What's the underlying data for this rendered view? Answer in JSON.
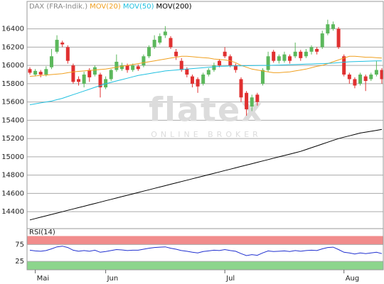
{
  "chart_data": [
    {
      "type": "candlestick",
      "name": "DAX (FRA-Indik.)",
      "name_color": "#888888",
      "up_color": "#5cb85c",
      "down_color": "#e03030",
      "categories": [
        null,
        "Mai",
        null,
        null,
        null,
        null,
        null,
        null,
        null,
        null,
        null,
        null,
        null,
        null,
        "Jun",
        null,
        null,
        null,
        null,
        null,
        null,
        null,
        null,
        null,
        null,
        null,
        null,
        null,
        null,
        null,
        null,
        null,
        null,
        null,
        null,
        null,
        "Jul",
        null,
        null,
        null,
        null,
        null,
        null,
        null,
        null,
        null,
        null,
        null,
        null,
        null,
        null,
        null,
        null,
        null,
        null,
        null,
        null,
        null,
        "Aug",
        null,
        null,
        null,
        null,
        null,
        null,
        null
      ],
      "open": [
        15960,
        15900,
        15930,
        15900,
        15980,
        16150,
        16250,
        16200,
        16000,
        15850,
        15800,
        15950,
        15900,
        15900,
        15760,
        15850,
        15950,
        15960,
        16000,
        15950,
        15990,
        16000,
        16100,
        16200,
        16250,
        16330,
        16300,
        16150,
        16050,
        15960,
        15880,
        15850,
        15800,
        15900,
        15950,
        16050,
        16150,
        16100,
        16000,
        15850,
        15700,
        15550,
        15680,
        15800,
        15950,
        16150,
        16050,
        16050,
        16100,
        16100,
        16150,
        16100,
        16150,
        16180,
        16200,
        16350,
        16400,
        16400,
        16100,
        15900,
        15850,
        15800,
        15880,
        15850,
        15900,
        15950
      ],
      "high": [
        15980,
        15960,
        15950,
        15990,
        16180,
        16330,
        16270,
        16220,
        16020,
        15880,
        15930,
        15970,
        16000,
        15920,
        15880,
        15960,
        16120,
        16030,
        16020,
        16020,
        16010,
        16120,
        16220,
        16330,
        16350,
        16430,
        16320,
        16180,
        16080,
        15980,
        15900,
        15870,
        15920,
        15970,
        16030,
        16070,
        16200,
        16120,
        16020,
        15870,
        15720,
        15680,
        15700,
        15970,
        16150,
        16170,
        16120,
        16150,
        16120,
        16250,
        16170,
        16180,
        16220,
        16200,
        16380,
        16500,
        16480,
        16420,
        16120,
        15920,
        15870,
        15920,
        15900,
        15920,
        16050,
        15970
      ],
      "low": [
        15900,
        15880,
        15870,
        15880,
        15960,
        16130,
        16200,
        16020,
        15800,
        15780,
        15760,
        15820,
        15880,
        15650,
        15740,
        15830,
        15930,
        15940,
        15920,
        15930,
        15940,
        15980,
        16080,
        16180,
        16230,
        16300,
        16180,
        16060,
        15930,
        15870,
        15760,
        15700,
        15780,
        15880,
        15930,
        15980,
        16080,
        15980,
        15920,
        15600,
        15450,
        15500,
        15560,
        15780,
        15930,
        16030,
        16020,
        16030,
        16020,
        16080,
        16050,
        16080,
        16120,
        16120,
        16180,
        16330,
        16380,
        16180,
        15880,
        15800,
        15750,
        15780,
        15720,
        15830,
        15880,
        15800
      ],
      "close": [
        15920,
        15940,
        15900,
        15960,
        16100,
        16280,
        16230,
        16050,
        15820,
        15820,
        15900,
        15870,
        15980,
        15760,
        15850,
        15950,
        16040,
        16000,
        15950,
        16000,
        15960,
        16100,
        16200,
        16280,
        16320,
        16370,
        16200,
        16100,
        15950,
        15900,
        15800,
        15770,
        15900,
        15950,
        16000,
        16000,
        16100,
        16000,
        15950,
        15650,
        15520,
        15650,
        15600,
        15950,
        16100,
        16050,
        16100,
        16120,
        16050,
        16150,
        16080,
        16150,
        16200,
        16150,
        16350,
        16450,
        16450,
        16200,
        15900,
        15850,
        15780,
        15900,
        15830,
        15900,
        15950,
        15850
      ],
      "series": [
        {
          "name": "MOV(20)",
          "color": "#f0a020",
          "values": [
            15880,
            15885,
            15890,
            15895,
            15900,
            15905,
            15910,
            15920,
            15930,
            15935,
            15940,
            15945,
            15950,
            15955,
            15960,
            15970,
            15980,
            15990,
            16000,
            16010,
            16020,
            16030,
            16040,
            16050,
            16060,
            16070,
            16080,
            16090,
            16100,
            16100,
            16095,
            16090,
            16085,
            16080,
            16070,
            16065,
            16060,
            16050,
            16030,
            16000,
            15980,
            15960,
            15950,
            15940,
            15930,
            15920,
            15920,
            15925,
            15930,
            15940,
            15950,
            15960,
            15975,
            15990,
            16000,
            16020,
            16040,
            16060,
            16080,
            16100,
            16100,
            16095,
            16090,
            16090,
            16085,
            16080
          ]
        },
        {
          "name": "MOV(50)",
          "color": "#20c0e0",
          "values": [
            15570,
            15580,
            15590,
            15600,
            15610,
            15625,
            15640,
            15660,
            15680,
            15700,
            15720,
            15740,
            15760,
            15780,
            15800,
            15815,
            15830,
            15845,
            15860,
            15875,
            15890,
            15900,
            15910,
            15920,
            15930,
            15940,
            15945,
            15950,
            15955,
            15960,
            15965,
            15970,
            15975,
            15980,
            15985,
            15990,
            15992,
            15994,
            15995,
            15996,
            15997,
            15998,
            15999,
            16000,
            16000,
            16002,
            16004,
            16006,
            16008,
            16010,
            16012,
            16014,
            16016,
            16018,
            16020,
            16022,
            16025,
            16030,
            16035,
            16040,
            16042,
            16044,
            16046,
            16048,
            16049,
            16050
          ]
        },
        {
          "name": "MOV(200)",
          "color": "#000000",
          "values": [
            14310,
            14325,
            14340,
            14355,
            14370,
            14385,
            14400,
            14415,
            14430,
            14445,
            14460,
            14475,
            14490,
            14505,
            14520,
            14535,
            14550,
            14565,
            14580,
            14595,
            14610,
            14625,
            14640,
            14655,
            14670,
            14685,
            14700,
            14715,
            14730,
            14745,
            14760,
            14775,
            14790,
            14805,
            14820,
            14835,
            14850,
            14865,
            14880,
            14895,
            14910,
            14925,
            14940,
            14955,
            14970,
            14985,
            15000,
            15015,
            15030,
            15045,
            15060,
            15080,
            15100,
            15120,
            15140,
            15160,
            15180,
            15200,
            15215,
            15230,
            15245,
            15260,
            15270,
            15280,
            15290,
            15300
          ]
        }
      ],
      "ylim": [
        14215,
        16700
      ],
      "yticks": [
        14400,
        14600,
        14800,
        15000,
        15200,
        15400,
        15600,
        15800,
        16000,
        16200,
        16400
      ],
      "grid": true,
      "watermark": {
        "title": "flatex",
        "subtitle": "ONLINE BROKER"
      }
    },
    {
      "type": "line",
      "series": [
        {
          "name": "RSI(14)",
          "color": "#2030d0",
          "values": [
            58,
            56,
            55,
            57,
            62,
            68,
            70,
            66,
            58,
            55,
            57,
            55,
            58,
            52,
            54,
            57,
            60,
            59,
            57,
            58,
            58,
            61,
            64,
            66,
            67,
            68,
            64,
            61,
            57,
            55,
            52,
            50,
            54,
            56,
            58,
            57,
            60,
            57,
            55,
            48,
            42,
            45,
            43,
            50,
            56,
            54,
            55,
            56,
            54,
            57,
            55,
            57,
            58,
            57,
            62,
            66,
            67,
            60,
            52,
            50,
            47,
            50,
            48,
            50,
            52,
            48
          ]
        }
      ],
      "ylim": [
        0,
        122
      ],
      "yticks": [
        25,
        75
      ],
      "zones": [
        {
          "from": 75,
          "to": 100,
          "color": "#f08080"
        },
        {
          "from": 0,
          "to": 25,
          "color": "#7fd07f"
        }
      ]
    }
  ]
}
